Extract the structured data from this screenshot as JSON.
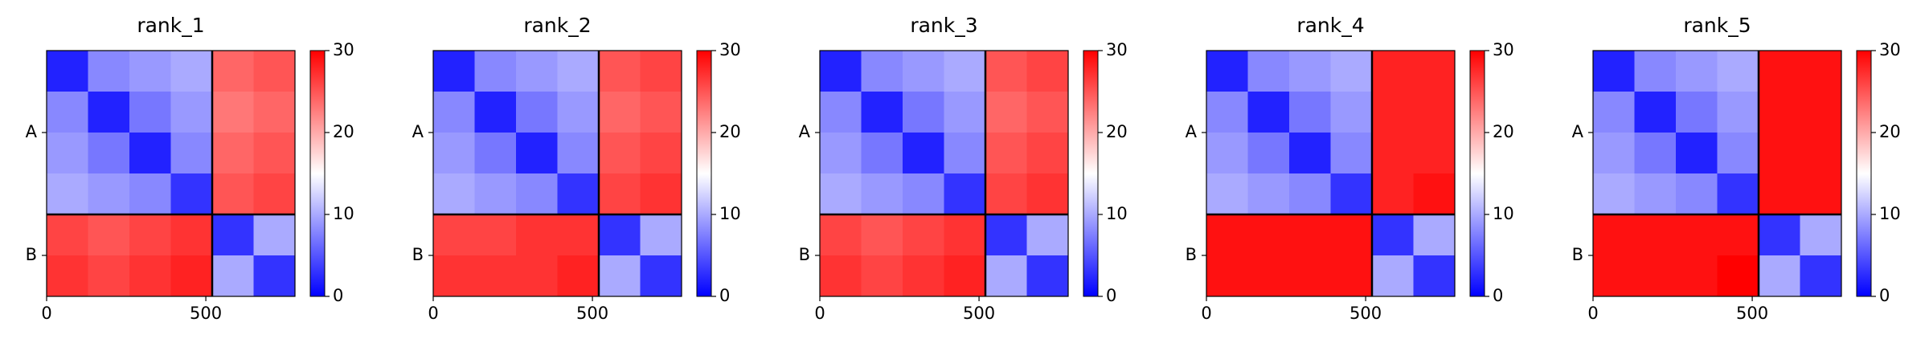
{
  "chart_data": [
    {
      "type": "heatmap",
      "title": "rank_1",
      "xlim": [
        0,
        780
      ],
      "ylim": [
        780,
        0
      ],
      "xticks": [
        0,
        500
      ],
      "yticks": [
        {
          "value": 260,
          "label": "A"
        },
        {
          "value": 650,
          "label": "B"
        }
      ],
      "boundaries": [
        520
      ],
      "edges": [
        0,
        130,
        260,
        390,
        520,
        650,
        780
      ],
      "clim": [
        0,
        30
      ],
      "cticks": [
        0,
        10,
        20,
        30
      ],
      "values": [
        [
          2,
          8,
          9,
          10,
          24,
          25
        ],
        [
          8,
          2,
          7,
          9,
          23,
          24
        ],
        [
          9,
          7,
          2,
          8,
          24,
          25
        ],
        [
          10,
          9,
          8,
          3,
          25,
          26
        ],
        [
          26,
          25,
          26,
          27,
          3,
          10
        ],
        [
          27,
          26,
          27,
          28,
          10,
          3
        ]
      ]
    },
    {
      "type": "heatmap",
      "title": "rank_2",
      "xlim": [
        0,
        780
      ],
      "ylim": [
        780,
        0
      ],
      "xticks": [
        0,
        500
      ],
      "yticks": [
        {
          "value": 260,
          "label": "A"
        },
        {
          "value": 650,
          "label": "B"
        }
      ],
      "boundaries": [
        520
      ],
      "edges": [
        0,
        130,
        260,
        390,
        520,
        650,
        780
      ],
      "clim": [
        0,
        30
      ],
      "cticks": [
        0,
        10,
        20,
        30
      ],
      "values": [
        [
          2,
          8,
          9,
          10,
          25,
          26
        ],
        [
          8,
          2,
          7,
          9,
          24,
          25
        ],
        [
          9,
          7,
          2,
          8,
          25,
          26
        ],
        [
          10,
          9,
          8,
          3,
          26,
          27
        ],
        [
          26,
          26,
          27,
          27,
          3,
          10
        ],
        [
          27,
          27,
          27,
          28,
          10,
          3
        ]
      ]
    },
    {
      "type": "heatmap",
      "title": "rank_3",
      "xlim": [
        0,
        780
      ],
      "ylim": [
        780,
        0
      ],
      "xticks": [
        0,
        500
      ],
      "yticks": [
        {
          "value": 260,
          "label": "A"
        },
        {
          "value": 650,
          "label": "B"
        }
      ],
      "boundaries": [
        520
      ],
      "edges": [
        0,
        130,
        260,
        390,
        520,
        650,
        780
      ],
      "clim": [
        0,
        30
      ],
      "cticks": [
        0,
        10,
        20,
        30
      ],
      "values": [
        [
          2,
          8,
          9,
          10,
          25,
          26
        ],
        [
          8,
          2,
          7,
          9,
          24,
          25
        ],
        [
          9,
          7,
          2,
          8,
          25,
          26
        ],
        [
          10,
          9,
          8,
          3,
          26,
          27
        ],
        [
          26,
          25,
          26,
          27,
          3,
          10
        ],
        [
          27,
          26,
          27,
          28,
          10,
          3
        ]
      ]
    },
    {
      "type": "heatmap",
      "title": "rank_4",
      "xlim": [
        0,
        780
      ],
      "ylim": [
        780,
        0
      ],
      "xticks": [
        0,
        500
      ],
      "yticks": [
        {
          "value": 260,
          "label": "A"
        },
        {
          "value": 650,
          "label": "B"
        }
      ],
      "boundaries": [
        520
      ],
      "edges": [
        0,
        130,
        260,
        390,
        520,
        650,
        780
      ],
      "clim": [
        0,
        30
      ],
      "cticks": [
        0,
        10,
        20,
        30
      ],
      "values": [
        [
          2,
          8,
          9,
          10,
          28,
          28
        ],
        [
          8,
          2,
          7,
          9,
          28,
          28
        ],
        [
          9,
          7,
          2,
          8,
          28,
          28
        ],
        [
          10,
          9,
          8,
          3,
          28,
          29
        ],
        [
          29,
          29,
          29,
          29,
          3,
          10
        ],
        [
          29,
          29,
          29,
          29,
          10,
          3
        ]
      ]
    },
    {
      "type": "heatmap",
      "title": "rank_5",
      "xlim": [
        0,
        780
      ],
      "ylim": [
        780,
        0
      ],
      "xticks": [
        0,
        500
      ],
      "yticks": [
        {
          "value": 260,
          "label": "A"
        },
        {
          "value": 650,
          "label": "B"
        }
      ],
      "boundaries": [
        520
      ],
      "edges": [
        0,
        130,
        260,
        390,
        520,
        650,
        780
      ],
      "clim": [
        0,
        30
      ],
      "cticks": [
        0,
        10,
        20,
        30
      ],
      "values": [
        [
          2,
          8,
          9,
          10,
          29,
          29
        ],
        [
          8,
          2,
          7,
          9,
          29,
          29
        ],
        [
          9,
          7,
          2,
          8,
          29,
          29
        ],
        [
          10,
          9,
          8,
          3,
          29,
          29
        ],
        [
          29,
          29,
          29,
          29,
          3,
          10
        ],
        [
          29,
          29,
          29,
          30,
          10,
          3
        ]
      ]
    }
  ]
}
